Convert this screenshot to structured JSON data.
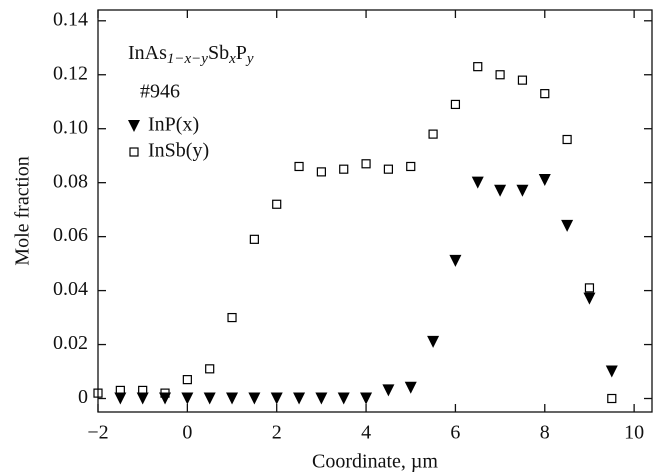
{
  "chart_data": {
    "type": "scatter",
    "xlabel": "Coordinate, µm",
    "ylabel": "Mole fraction",
    "annotations": {
      "formula": [
        "InAs",
        "1−x−y",
        "Sb",
        "x",
        "P",
        "y"
      ],
      "sample": "#946"
    },
    "xlim": [
      -2,
      10.4
    ],
    "ylim": [
      -0.005,
      0.144
    ],
    "xticks": [
      {
        "value": -2,
        "label": "−2"
      },
      0,
      2,
      4,
      6,
      8,
      10
    ],
    "yticks": [
      0,
      0.02,
      0.04,
      0.06,
      0.08,
      {
        "value": 0.1,
        "label": "0.10"
      },
      0.12,
      0.14
    ],
    "legend": "upper left",
    "series": [
      {
        "name": "InP(x)",
        "color": "#000000",
        "marker": "triangle-down",
        "x": [
          -1.5,
          -1,
          -0.5,
          0,
          0.5,
          1,
          1.5,
          2,
          2.5,
          3,
          3.5,
          4,
          4.5,
          5,
          5.5,
          6,
          6.5,
          7,
          7.5,
          8,
          8.5,
          9,
          9.5
        ],
        "values": [
          0,
          0,
          0,
          0,
          0,
          0,
          0,
          0,
          0,
          0,
          0,
          0,
          0.003,
          0.004,
          0.021,
          0.051,
          0.08,
          0.077,
          0.077,
          0.081,
          0.064,
          0.037,
          0.01
        ]
      },
      {
        "name": "InSb(y)",
        "color": "#000000",
        "marker": "square-open",
        "x": [
          -2,
          -1.5,
          -1,
          -0.5,
          0,
          0.5,
          1,
          1.5,
          2,
          2.5,
          3,
          3.5,
          4,
          4.5,
          5,
          5.5,
          6,
          6.5,
          7,
          7.5,
          8,
          8.5,
          9,
          9.5
        ],
        "values": [
          0.002,
          0.003,
          0.003,
          0.002,
          0.007,
          0.011,
          0.03,
          0.059,
          0.072,
          0.086,
          0.084,
          0.085,
          0.087,
          0.085,
          0.086,
          0.098,
          0.109,
          0.123,
          0.12,
          0.118,
          0.113,
          0.096,
          0.041,
          0.0
        ]
      }
    ]
  }
}
